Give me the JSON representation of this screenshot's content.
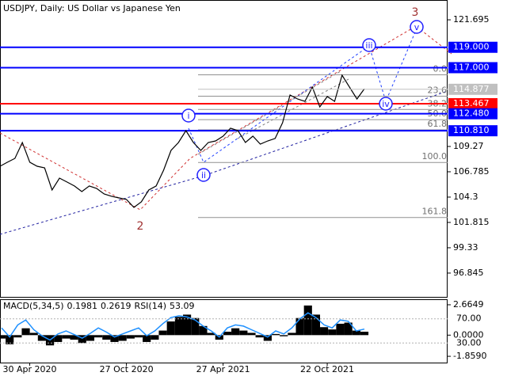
{
  "chart_data": [
    {
      "type": "line",
      "title": "USDJPY, Daily:  US Dollar vs Japanese Yen",
      "color": "#000000",
      "categories": [
        null,
        null,
        null,
        null,
        "30 Apr 2020",
        null,
        null,
        null,
        null,
        null,
        null,
        null,
        null,
        null,
        null,
        null,
        null,
        "27 Oct 2020",
        null,
        null,
        null,
        null,
        null,
        null,
        null,
        null,
        null,
        null,
        null,
        null,
        "27 Apr 2021",
        null,
        null,
        null,
        null,
        null,
        null,
        null,
        null,
        null,
        null,
        null,
        null,
        null,
        "22 Oct 2021",
        null,
        null,
        null,
        null,
        null
      ],
      "values": [
        107.33,
        107.72,
        108.1,
        109.66,
        107.72,
        107.33,
        107.17,
        105.0,
        106.16,
        105.78,
        105.39,
        104.84,
        105.39,
        105.15,
        104.61,
        104.38,
        104.22,
        104.07,
        103.29,
        103.83,
        105.0,
        105.39,
        106.94,
        108.88,
        109.66,
        110.82,
        109.66,
        108.88,
        109.66,
        109.81,
        110.28,
        111.06,
        110.82,
        109.66,
        110.28,
        109.5,
        109.81,
        110.05,
        111.6,
        114.32,
        113.93,
        113.7,
        115.09,
        113.15,
        114.16,
        113.7,
        116.26,
        115.09,
        113.93,
        114.93
      ],
      "ylim": [
        94.51,
        123.64
      ],
      "yticks": [
        121.695,
        109.27,
        106.785,
        104.3,
        101.815,
        99.33,
        96.845
      ],
      "last_price": 114.877,
      "levels": [
        {
          "value": 119,
          "label": "119.000",
          "color": "#0000ff"
        },
        {
          "value": 117,
          "label": "117.000",
          "color": "#0000ff"
        },
        {
          "value": 113.467,
          "label": "113.467",
          "color": "#ff0000"
        },
        {
          "value": 112.48,
          "label": "112.480",
          "color": "#0000ff"
        },
        {
          "value": 110.81,
          "label": "110.810",
          "color": "#0000ff"
        }
      ],
      "fib_levels": [
        {
          "value": 116.3,
          "label": "0.0"
        },
        {
          "value": 114.2,
          "label": "23.6"
        },
        {
          "value": 112.9,
          "label": "38.2"
        },
        {
          "value": 111.9,
          "label": "50.0"
        },
        {
          "value": 110.9,
          "label": "61.8"
        },
        {
          "value": 107.7,
          "label": "100.0"
        },
        {
          "value": 102.3,
          "label": "161.8"
        }
      ],
      "wave_labels": [
        "3",
        "2",
        "i",
        "ii",
        "iii",
        "iv",
        "v"
      ]
    },
    {
      "type": "bar",
      "macd_label": "MACD(5,34,5)",
      "macd_value": 0.1981,
      "signal_value": 0.2619,
      "rsi_label": "RSI(14)",
      "rsi_value": 53.09,
      "color": "#000000",
      "values": [
        -0.3,
        -0.8,
        -0.2,
        0.6,
        0.2,
        -0.5,
        -0.9,
        -0.6,
        -0.3,
        -0.4,
        -0.7,
        -0.5,
        -0.2,
        -0.4,
        -0.6,
        -0.5,
        -0.3,
        -0.2,
        -0.6,
        -0.4,
        0.4,
        1.2,
        1.6,
        1.8,
        1.5,
        0.8,
        0.2,
        -0.4,
        0.3,
        0.6,
        0.4,
        0.2,
        -0.2,
        -0.5,
        0.1,
        -0.1,
        0.2,
        1.5,
        2.6,
        1.8,
        0.7,
        0.5,
        1.0,
        1.1,
        0.4,
        0.3
      ],
      "series": [
        {
          "name": "RSI(14)",
          "color": "#1e90ff",
          "axis": "y2",
          "values": [
            55,
            40,
            60,
            68,
            52,
            42,
            35,
            45,
            50,
            44,
            38,
            46,
            55,
            48,
            40,
            45,
            50,
            55,
            42,
            50,
            62,
            72,
            75,
            73,
            68,
            58,
            50,
            40,
            55,
            60,
            58,
            52,
            46,
            40,
            50,
            45,
            55,
            70,
            80,
            72,
            60,
            55,
            68,
            66,
            50,
            53
          ]
        }
      ],
      "ylim": [
        -2.41,
        3.08
      ],
      "yticks": [
        2.6649,
        {
          "value": 0,
          "label": "0.0000"
        },
        {
          "value": -1.859,
          "label": "-1.8590"
        }
      ],
      "y2lim": [
        -2.3,
        101
      ],
      "y2ticks": [
        {
          "value": 70,
          "label": "70.00"
        },
        {
          "value": 30,
          "label": "30.00"
        }
      ]
    }
  ]
}
